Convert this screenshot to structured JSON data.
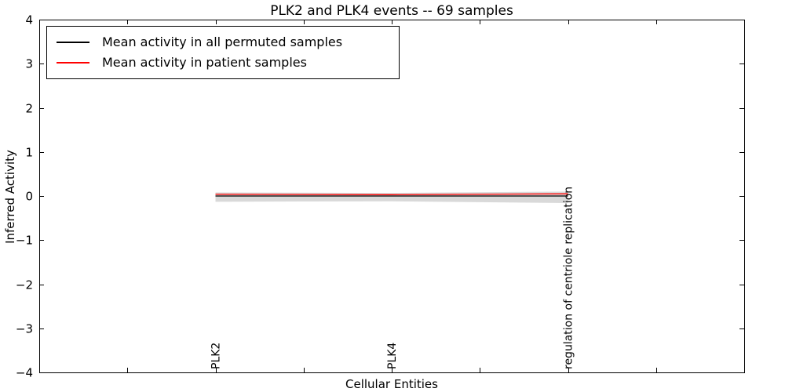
{
  "title": "PLK2 and PLK4 events -- 69 samples",
  "xlabel": "Cellular Entities",
  "ylabel": "Inferred Activity",
  "legend": {
    "items": [
      {
        "label": "Mean activity in all permuted samples",
        "color": "#000000"
      },
      {
        "label": "Mean activity in patient samples",
        "color": "#ff0000"
      }
    ]
  },
  "chart_data": {
    "type": "line",
    "title": "PLK2 and PLK4 events -- 69 samples",
    "xlabel": "Cellular Entities",
    "ylabel": "Inferred Activity",
    "categories": [
      "PLK2",
      "PLK4",
      "regulation of centriole replication"
    ],
    "category_x": [
      2,
      4,
      6
    ],
    "xlim": [
      0,
      8
    ],
    "ylim": [
      -4,
      4
    ],
    "xticks": [
      1,
      2,
      3,
      4,
      5,
      6,
      7
    ],
    "yticks": [
      -4,
      -3,
      -2,
      -1,
      0,
      1,
      2,
      3,
      4
    ],
    "grid": false,
    "legend_position": "upper left",
    "series": [
      {
        "name": "Mean activity in all permuted samples",
        "color": "#000000",
        "x": [
          2,
          4,
          6
        ],
        "values": [
          0.0,
          0.0,
          0.0
        ]
      },
      {
        "name": "Mean activity in patient samples",
        "color": "#ff0000",
        "x": [
          2,
          4,
          6
        ],
        "values": [
          0.04,
          0.03,
          0.05
        ]
      }
    ],
    "band": {
      "name": "permuted std band",
      "color": "#d9d9d9",
      "x": [
        2,
        4,
        6
      ],
      "upper": [
        0.08,
        0.07,
        0.1
      ],
      "lower": [
        -0.13,
        -0.12,
        -0.16
      ]
    }
  }
}
